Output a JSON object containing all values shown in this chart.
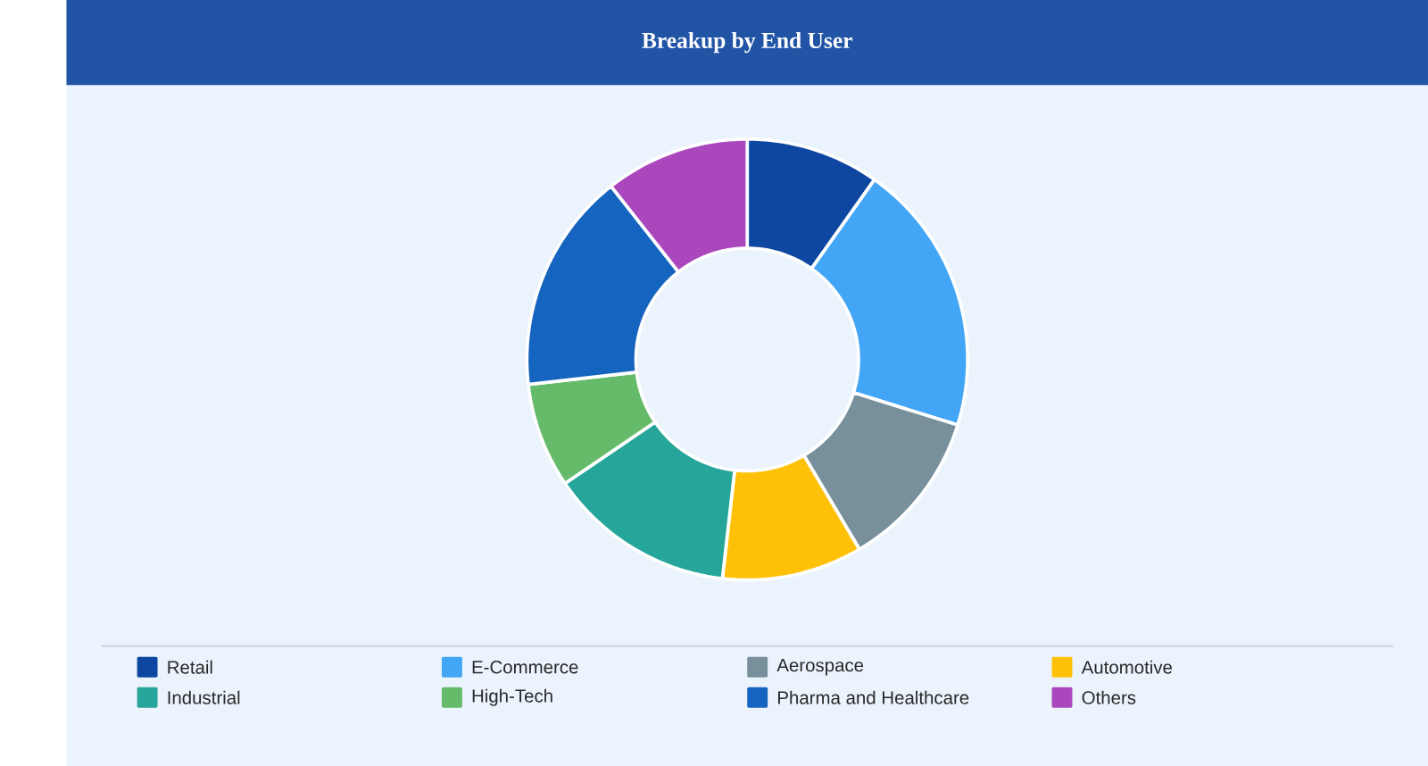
{
  "chart_data": {
    "type": "donut",
    "title": "Breakup by End User",
    "categories": [
      "Retail",
      "E-Commerce",
      "Aerospace",
      "Automotive",
      "Industrial",
      "High-Tech",
      "Pharma and Healthcare",
      "Others"
    ],
    "values": [
      9.8,
      20.0,
      11.7,
      10.3,
      13.7,
      7.7,
      16.2,
      10.6
    ],
    "colors": [
      "#0d47a1",
      "#42a5f5",
      "#78909c",
      "#ffc107",
      "#26a69a",
      "#66bb6a",
      "#1565c0",
      "#ab47bc"
    ],
    "legend": "bottom"
  }
}
